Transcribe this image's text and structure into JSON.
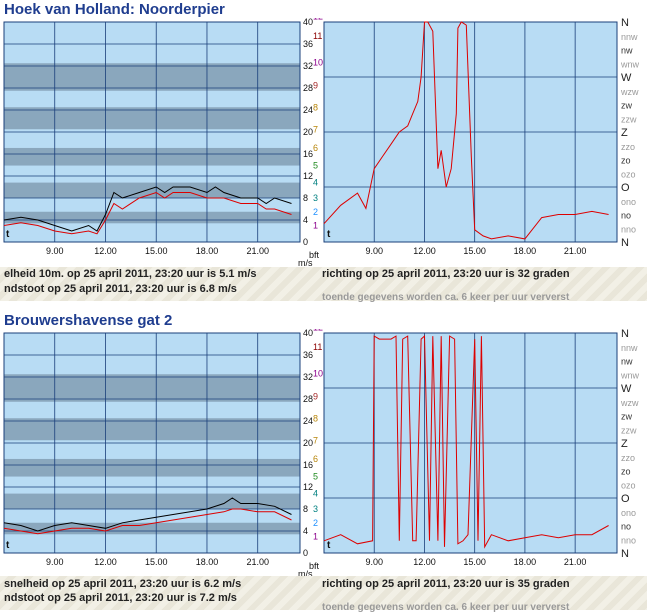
{
  "stations": [
    {
      "title": "Hoek van Holland: Noorderpier",
      "info": {
        "speed": "elheid 10m. op 25 april 2011, 23:20 uur is 5.1 m/s",
        "gust": "ndstoot op 25 april 2011, 23:20 uur is 6.8 m/s",
        "direction": "richting op 25 april 2011, 23:20 uur is 32 graden",
        "note": "toende gegevens worden ca. 6 keer per uur ververst"
      }
    },
    {
      "title": "Brouwershavense gat 2",
      "info": {
        "speed": "snelheid op 25 april 2011, 23:20 uur is 6.2 m/s",
        "gust": "ndstoot op 25 april 2011, 23:20 uur is 7.2 m/s",
        "direction": "richting op 25 april 2011, 23:20 uur is 35 graden",
        "note": "toende gegevens worden ca. 6 keer per uur ververst"
      }
    }
  ],
  "axes": {
    "x_ticks": [
      "9.00",
      "12.00",
      "15.00",
      "18.00",
      "21.00"
    ],
    "ms_ticks": [
      "40",
      "36",
      "32",
      "28",
      "24",
      "20",
      "16",
      "12",
      "8",
      "4",
      "0"
    ],
    "bft_ticks": [
      "12",
      "11",
      "10",
      "9",
      "8",
      "7",
      "6",
      "5",
      "4",
      "3",
      "2",
      "1"
    ],
    "ms_unit": "m/s",
    "bft_unit": "bft",
    "dir_labels": [
      "N",
      "nnw",
      "nw",
      "wnw",
      "W",
      "wzw",
      "zw",
      "zzw",
      "Z",
      "zzo",
      "zo",
      "ozo",
      "O",
      "ono",
      "no",
      "nno",
      "N"
    ],
    "dir_markers": [
      "t",
      "t"
    ]
  },
  "colors": {
    "plot_bg": "#b8dcf4",
    "band": "#8aa7bd",
    "grid": "#1a3f7a",
    "gust_line": "#000000",
    "speed_line": "#dd0000",
    "direction_line": "#dd0000",
    "title": "#1f3d8f",
    "bft_colors": [
      "#8b008b",
      "#8b0000",
      "#8b008b",
      "#a52a2a",
      "#b8860b",
      "#b8860b",
      "#b8860b",
      "#228b22",
      "#008080",
      "#008080",
      "#1e90ff",
      "#8b008b"
    ]
  },
  "chart_data": [
    {
      "type": "line",
      "title": "Hoek van Holland: Noorderpier",
      "x_range_hours": [
        6,
        23.5
      ],
      "ylim": [
        0,
        40
      ],
      "ylabel": "m/s",
      "series": [
        {
          "name": "",
          "x": [
            6,
            7,
            8,
            9,
            10,
            11,
            11.5,
            12,
            12.5,
            13,
            14,
            15,
            15.5,
            16,
            17,
            18,
            18.5,
            19,
            20,
            21,
            21.5,
            22,
            23
          ],
          "y": [
            4,
            4.5,
            4,
            3,
            2,
            3,
            2,
            5,
            9,
            8,
            9,
            10,
            9,
            10,
            10,
            9,
            10,
            9,
            8,
            8,
            7,
            8,
            7
          ]
        },
        {
          "name": "",
          "x": [
            6,
            7,
            8,
            9,
            10,
            11,
            11.5,
            12,
            12.5,
            13,
            14,
            15,
            15.5,
            16,
            17,
            18,
            18.5,
            19,
            20,
            21,
            21.5,
            22,
            23
          ],
          "y": [
            3,
            3.5,
            3,
            2,
            1.5,
            2,
            1.5,
            4,
            7,
            6,
            8,
            9,
            8,
            9,
            9,
            8,
            8,
            8,
            7,
            7,
            6,
            6,
            5
          ]
        }
      ]
    },
    {
      "type": "line",
      "title": "Hoek van Holland: Noorderpier",
      "x_range_hours": [
        6,
        23.5
      ],
      "ylabel": "richting",
      "series": [
        {
          "name": "",
          "x": [
            6,
            7,
            8,
            8.5,
            9,
            9.5,
            10,
            10.5,
            11,
            11.3,
            11.6,
            11.8,
            12,
            12.2,
            12.5,
            12.8,
            13,
            13.3,
            13.6,
            13.9,
            14,
            14.2,
            14.5,
            14.8,
            15,
            15.5,
            16,
            17,
            18,
            19,
            20,
            21,
            22,
            23
          ],
          "y_deg": [
            30,
            60,
            80,
            55,
            120,
            140,
            160,
            180,
            190,
            210,
            230,
            270,
            360,
            360,
            345,
            120,
            150,
            90,
            120,
            210,
            350,
            360,
            355,
            140,
            20,
            10,
            5,
            10,
            5,
            40,
            45,
            45,
            50,
            45
          ]
        }
      ]
    },
    {
      "type": "line",
      "title": "Brouwershavense gat 2",
      "x_range_hours": [
        6,
        23.5
      ],
      "ylim": [
        0,
        40
      ],
      "ylabel": "m/s",
      "series": [
        {
          "name": "",
          "x": [
            6,
            7,
            8,
            9,
            10,
            11,
            12,
            13,
            14,
            15,
            16,
            17,
            18,
            19,
            19.5,
            20,
            21,
            22,
            23
          ],
          "y": [
            5.5,
            5,
            4,
            5,
            5.5,
            5,
            4.5,
            5.5,
            6,
            6.5,
            7,
            7.5,
            8,
            9,
            10,
            9,
            9,
            8.5,
            7
          ]
        },
        {
          "name": "",
          "x": [
            6,
            7,
            8,
            9,
            10,
            11,
            12,
            13,
            14,
            15,
            16,
            17,
            18,
            19,
            19.5,
            20,
            21,
            22,
            23
          ],
          "y": [
            4.5,
            4,
            3.5,
            4,
            4.5,
            4.5,
            4,
            5,
            5,
            5.5,
            6,
            6.5,
            7,
            7.5,
            8,
            8,
            7.5,
            7.5,
            6
          ]
        }
      ]
    },
    {
      "type": "line",
      "title": "Brouwershavense gat 2",
      "x_range_hours": [
        6,
        23.5
      ],
      "ylabel": "richting",
      "series": [
        {
          "name": "",
          "x": [
            6,
            7,
            8,
            8.9,
            9,
            9.3,
            10,
            10.3,
            10.5,
            10.7,
            11,
            11.3,
            11.5,
            11.8,
            12,
            12.3,
            12.5,
            12.8,
            13,
            13.2,
            13.5,
            13.8,
            14,
            14.3,
            14.6,
            15,
            15.2,
            15.4,
            15.6,
            16,
            17,
            18,
            19,
            20,
            21,
            22,
            23
          ],
          "y_deg": [
            20,
            30,
            15,
            20,
            355,
            350,
            350,
            355,
            20,
            350,
            355,
            20,
            20,
            350,
            355,
            20,
            355,
            20,
            355,
            10,
            355,
            350,
            15,
            20,
            30,
            350,
            20,
            355,
            10,
            30,
            20,
            25,
            30,
            25,
            30,
            30,
            45
          ]
        }
      ]
    }
  ]
}
